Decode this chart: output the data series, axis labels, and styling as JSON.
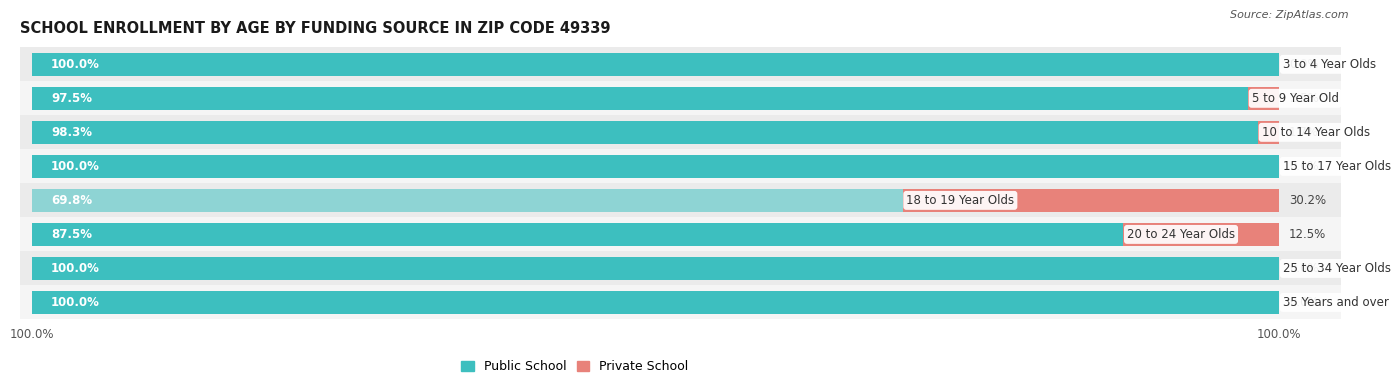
{
  "title": "SCHOOL ENROLLMENT BY AGE BY FUNDING SOURCE IN ZIP CODE 49339",
  "source": "Source: ZipAtlas.com",
  "categories": [
    "3 to 4 Year Olds",
    "5 to 9 Year Old",
    "10 to 14 Year Olds",
    "15 to 17 Year Olds",
    "18 to 19 Year Olds",
    "20 to 24 Year Olds",
    "25 to 34 Year Olds",
    "35 Years and over"
  ],
  "public_values": [
    100.0,
    97.5,
    98.3,
    100.0,
    69.8,
    87.5,
    100.0,
    100.0
  ],
  "private_values": [
    0.0,
    2.5,
    1.7,
    0.0,
    30.2,
    12.5,
    0.0,
    0.0
  ],
  "public_color": "#3DBFBF",
  "private_color": "#E8827A",
  "public_color_light": "#8ED4D4",
  "bg_color": "#F2F2F2",
  "bar_bg_color": "#E5E5E5",
  "row_bg_even": "#EBEBEB",
  "row_bg_odd": "#F5F5F5",
  "title_fontsize": 10.5,
  "source_fontsize": 8,
  "label_fontsize": 8.5,
  "value_fontsize": 8.5,
  "legend_fontsize": 9,
  "axis_label_fontsize": 8.5,
  "bar_height": 0.68,
  "legend_entries": [
    "Public School",
    "Private School"
  ]
}
